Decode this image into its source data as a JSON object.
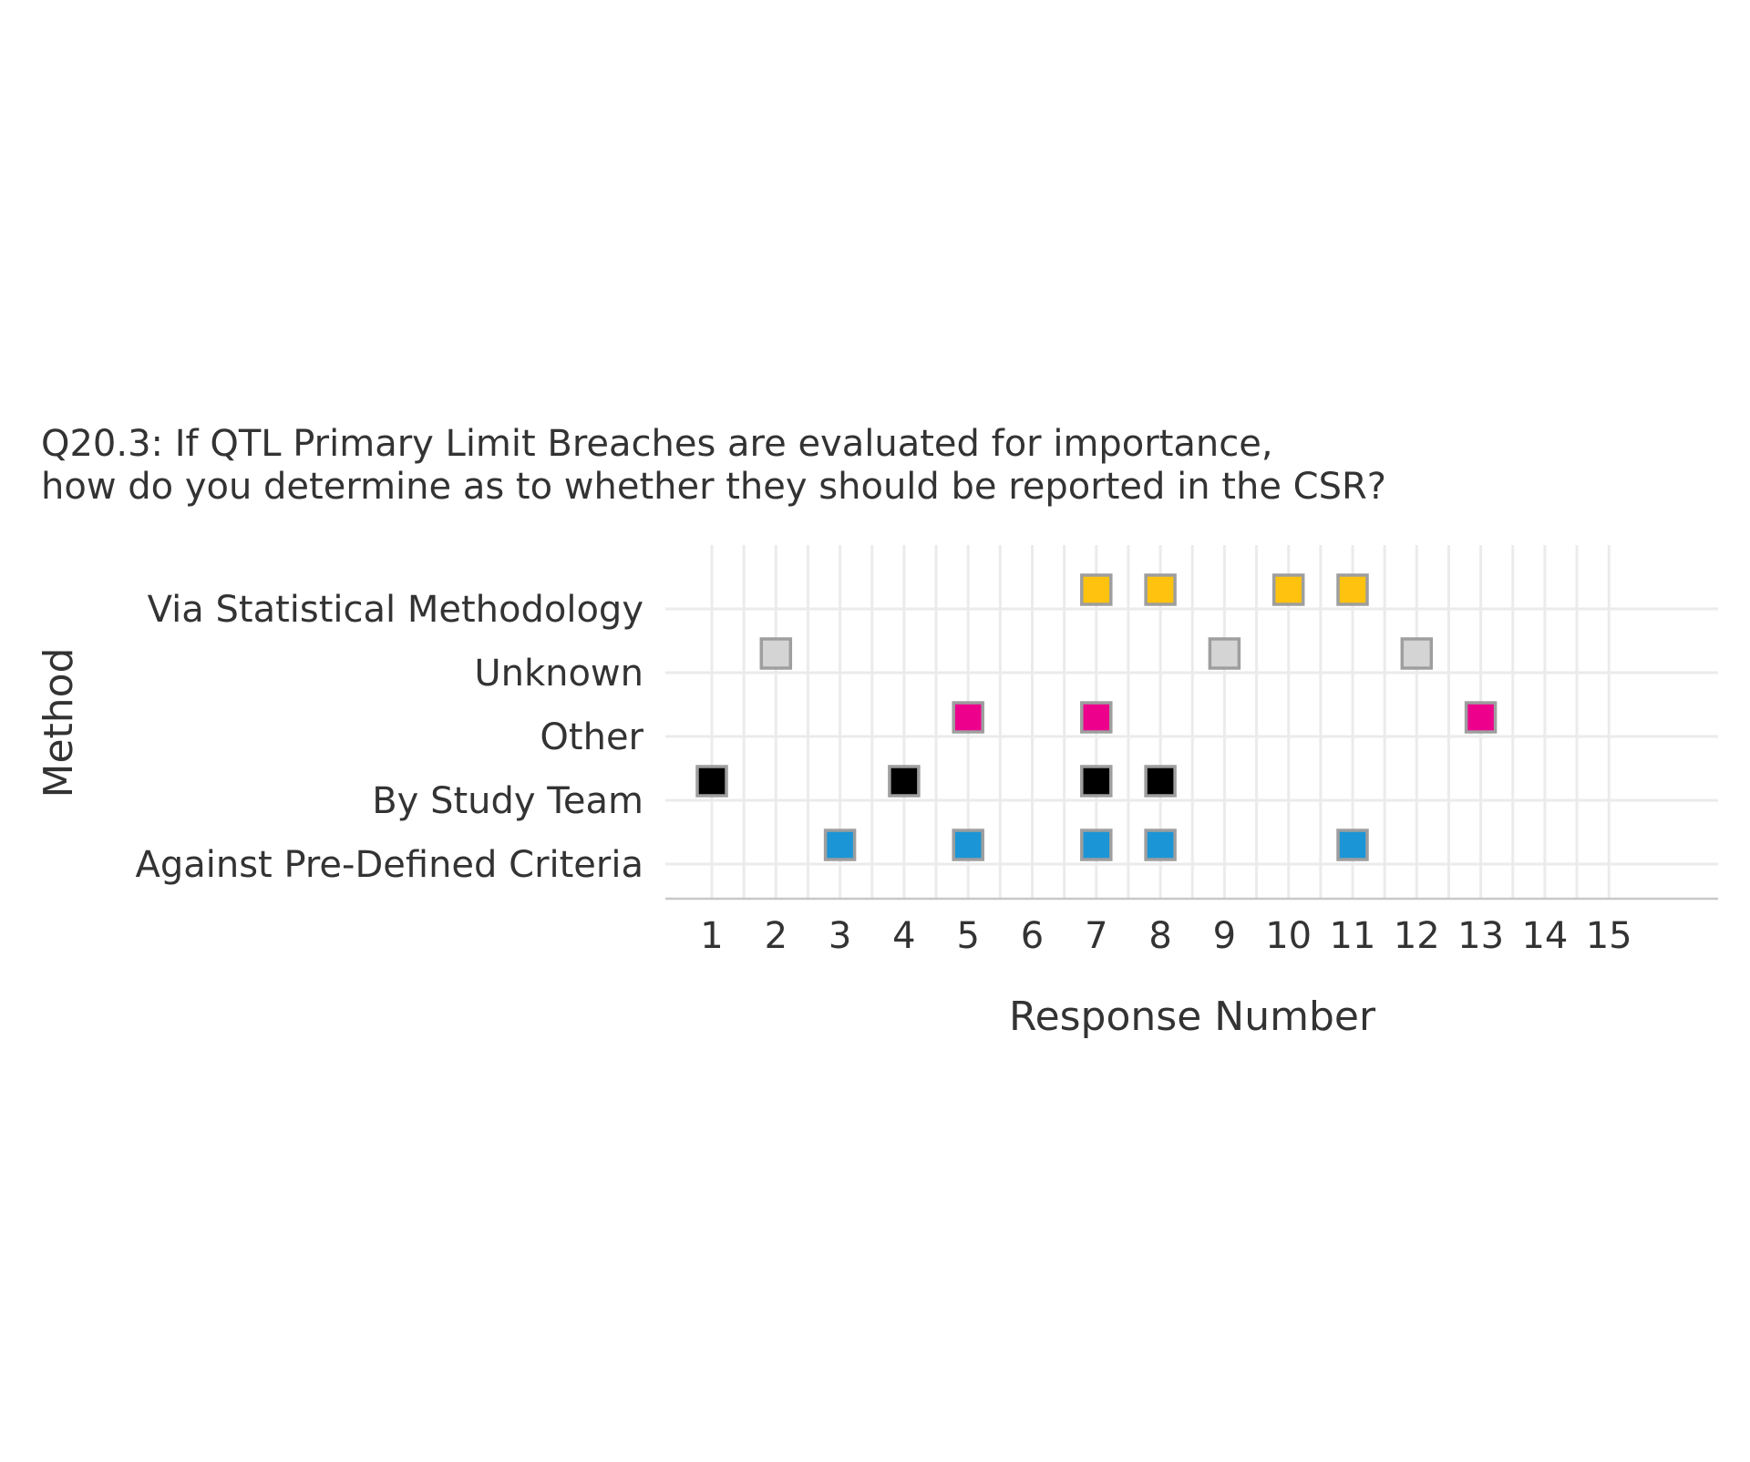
{
  "chart_data": {
    "type": "scatter",
    "title_lines": [
      "Q20.3: If QTL Primary Limit Breaches are evaluated for importance,",
      "how do you determine as to whether they should be reported in the CSR?"
    ],
    "xlabel": "Response Number",
    "ylabel": "Method",
    "x_ticks": [
      "1",
      "2",
      "3",
      "4",
      "5",
      "6",
      "7",
      "8",
      "9",
      "10",
      "11",
      "12",
      "13",
      "14",
      "15"
    ],
    "categories": [
      "Against Pre-Defined Criteria",
      "By Study Team",
      "Other",
      "Unknown",
      "Via Statistical Methodology"
    ],
    "grid": true,
    "marker": "square",
    "marker_edge_color": "#9e9e9e",
    "series": [
      {
        "category": "Via Statistical Methodology",
        "color": "#ffc20e",
        "x": [
          7,
          8,
          10,
          11
        ]
      },
      {
        "category": "Unknown",
        "color": "#d4d4d4",
        "x": [
          2,
          9,
          12
        ]
      },
      {
        "category": "Other",
        "color": "#ec008c",
        "x": [
          5,
          7,
          13
        ]
      },
      {
        "category": "By Study Team",
        "color": "#000000",
        "x": [
          1,
          4,
          7,
          8
        ]
      },
      {
        "category": "Against Pre-Defined Criteria",
        "color": "#1b95d6",
        "x": [
          3,
          5,
          7,
          8,
          11
        ]
      }
    ]
  }
}
